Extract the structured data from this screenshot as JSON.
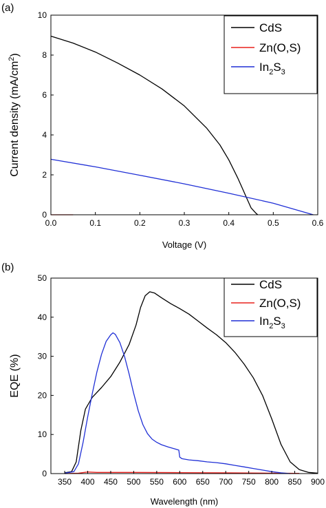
{
  "chart_data": [
    {
      "panel_label": "(a)",
      "type": "line",
      "xlabel": "Voltage (V)",
      "ylabel": "Current density (mA/cm",
      "ylabel_sup": "2",
      "ylabel_close": ")",
      "xlim": [
        0.0,
        0.6
      ],
      "ylim": [
        0,
        10
      ],
      "xticks": [
        0.0,
        0.1,
        0.2,
        0.3,
        0.4,
        0.5,
        0.6
      ],
      "xtick_labels": [
        "0.0",
        "0.1",
        "0.2",
        "0.3",
        "0.4",
        "0.5",
        "0.6"
      ],
      "yticks": [
        0,
        2,
        4,
        6,
        8,
        10
      ],
      "ytick_labels": [
        "0",
        "2",
        "4",
        "6",
        "8",
        "10"
      ],
      "grid": false,
      "legend_position": "top-right",
      "series": [
        {
          "name": "CdS",
          "color": "#000000",
          "x": [
            0.0,
            0.05,
            0.1,
            0.15,
            0.2,
            0.25,
            0.3,
            0.35,
            0.38,
            0.4,
            0.42,
            0.43,
            0.44,
            0.45,
            0.46,
            0.465
          ],
          "y": [
            8.95,
            8.6,
            8.15,
            7.6,
            7.0,
            6.3,
            5.45,
            4.35,
            3.5,
            2.75,
            1.85,
            1.35,
            0.85,
            0.35,
            0.1,
            0.0
          ]
        },
        {
          "name": "Zn(O,S)",
          "color": "#e8201c",
          "x": [
            0.0,
            0.05
          ],
          "y": [
            0.0,
            0.0
          ]
        },
        {
          "name": "In",
          "name_sub1": "2",
          "name_mid": "S",
          "name_sub2": "3",
          "color": "#1f2fd6",
          "x": [
            0.0,
            0.1,
            0.2,
            0.3,
            0.4,
            0.5,
            0.59
          ],
          "y": [
            2.78,
            2.4,
            1.98,
            1.55,
            1.08,
            0.58,
            0.0
          ]
        }
      ]
    },
    {
      "panel_label": "(b)",
      "type": "line",
      "xlabel": "Wavelength (nm)",
      "ylabel": "EQE (%)",
      "xlim": [
        320,
        900
      ],
      "ylim": [
        0,
        50
      ],
      "xticks": [
        350,
        400,
        450,
        500,
        550,
        600,
        650,
        700,
        750,
        800,
        850,
        900
      ],
      "xtick_labels": [
        "350",
        "400",
        "450",
        "500",
        "550",
        "600",
        "650",
        "700",
        "750",
        "800",
        "850",
        "900"
      ],
      "yticks": [
        0,
        10,
        20,
        30,
        40,
        50
      ],
      "ytick_labels": [
        "0",
        "10",
        "20",
        "30",
        "40",
        "50"
      ],
      "grid": false,
      "legend_position": "top-right",
      "series": [
        {
          "name": "CdS",
          "color": "#000000",
          "x": [
            350,
            365,
            375,
            385,
            395,
            410,
            430,
            450,
            470,
            490,
            505,
            515,
            525,
            535,
            545,
            560,
            580,
            600,
            620,
            640,
            660,
            680,
            700,
            720,
            740,
            760,
            780,
            800,
            820,
            840,
            860,
            880,
            900
          ],
          "y": [
            0.2,
            0.5,
            3.0,
            11.0,
            16.5,
            19.5,
            22.0,
            24.8,
            28.5,
            33.0,
            38.0,
            42.5,
            45.5,
            46.5,
            46.2,
            45.0,
            43.5,
            42.2,
            40.8,
            39.0,
            37.2,
            35.5,
            33.5,
            31.0,
            28.0,
            24.5,
            20.0,
            14.0,
            7.5,
            3.0,
            1.0,
            0.3,
            0.1
          ]
        },
        {
          "name": "Zn(O,S)",
          "color": "#e8201c",
          "x": [
            350,
            380,
            400,
            420,
            500,
            600,
            700,
            800,
            860
          ],
          "y": [
            0.0,
            0.1,
            0.4,
            0.3,
            0.3,
            0.25,
            0.2,
            0.1,
            0.05
          ]
        },
        {
          "name": "In",
          "name_sub1": "2",
          "name_mid": "S",
          "name_sub2": "3",
          "color": "#1f2fd6",
          "x": [
            350,
            370,
            380,
            390,
            400,
            410,
            420,
            430,
            440,
            450,
            455,
            460,
            470,
            480,
            490,
            500,
            510,
            520,
            530,
            540,
            550,
            560,
            575,
            590,
            598,
            600,
            605,
            620,
            640,
            660,
            680,
            700,
            720,
            740,
            760,
            780,
            800,
            820,
            840
          ],
          "y": [
            0.1,
            0.5,
            2.5,
            8.0,
            14.5,
            20.5,
            26.0,
            30.5,
            33.8,
            35.5,
            36.0,
            35.6,
            33.5,
            30.0,
            25.5,
            20.5,
            16.0,
            12.5,
            10.2,
            8.8,
            8.0,
            7.4,
            6.8,
            6.3,
            6.0,
            4.2,
            3.8,
            3.5,
            3.3,
            3.0,
            2.8,
            2.5,
            2.1,
            1.7,
            1.3,
            0.9,
            0.5,
            0.2,
            0.0
          ]
        }
      ]
    }
  ]
}
